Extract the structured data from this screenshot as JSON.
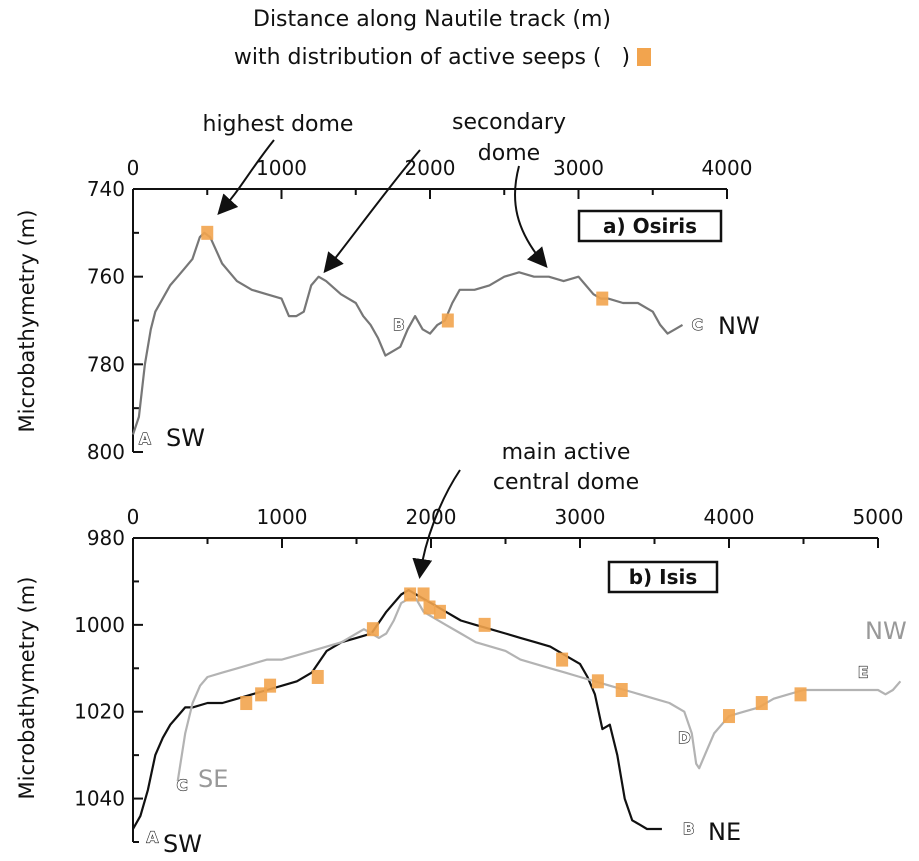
{
  "header": {
    "line1": "Distance along Nautile track (m)",
    "line2": "with distribution of active seeps (",
    "line2_end": ")"
  },
  "chart_data": [
    {
      "type": "line",
      "title": "a) Osiris",
      "ylabel": "Microbathymetry (m)",
      "xlim": [
        0,
        4000
      ],
      "ylim": [
        740,
        800
      ],
      "y_inverted": true,
      "x_ticks": [
        "0",
        "1000",
        "2000",
        "3000",
        "4000"
      ],
      "y_ticks": [
        "740",
        "760",
        "780",
        "800"
      ],
      "series": [
        {
          "color": "#777777",
          "x": [
            0,
            40,
            80,
            120,
            150,
            200,
            250,
            300,
            350,
            400,
            450,
            480,
            520,
            560,
            600,
            650,
            700,
            800,
            900,
            1000,
            1050,
            1100,
            1150,
            1200,
            1250,
            1300,
            1400,
            1450,
            1500,
            1550,
            1600,
            1650,
            1700,
            1750,
            1800,
            1850,
            1900,
            1950,
            2000,
            2050,
            2100,
            2150,
            2200,
            2300,
            2400,
            2500,
            2600,
            2700,
            2800,
            2900,
            3000,
            3050,
            3100,
            3150,
            3200,
            3300,
            3400,
            3500,
            3550,
            3600,
            3650,
            3700
          ],
          "y": [
            796,
            792,
            780,
            772,
            768,
            765,
            762,
            760,
            758,
            756,
            751,
            750,
            751,
            754,
            757,
            759,
            761,
            763,
            764,
            765,
            769,
            769,
            768,
            762,
            760,
            761,
            764,
            765,
            766,
            769,
            771,
            774,
            778,
            777,
            776,
            772,
            769,
            772,
            773,
            771,
            770,
            766,
            763,
            763,
            762,
            760,
            759,
            760,
            760,
            761,
            760,
            762,
            764,
            765,
            765,
            766,
            766,
            768,
            771,
            773,
            772,
            771
          ]
        }
      ],
      "seeps": [
        {
          "x": 500,
          "y": 750
        },
        {
          "x": 2120,
          "y": 770
        },
        {
          "x": 3160,
          "y": 765
        }
      ],
      "markers": [
        {
          "label": "A",
          "x": 80,
          "y": 797
        },
        {
          "label": "B",
          "x": 1790,
          "y": 771
        },
        {
          "label": "C",
          "x": 3800,
          "y": 771
        }
      ],
      "endpoint_labels": {
        "start": "SW",
        "end": "NW"
      },
      "annotations": [
        "highest dome",
        "secondary",
        "dome"
      ]
    },
    {
      "type": "line",
      "title": "b) Isis",
      "ylabel": "Microbathymetry (m)",
      "xlim": [
        0,
        5000
      ],
      "ylim": [
        980,
        1050
      ],
      "y_inverted": true,
      "x_ticks": [
        "0",
        "1000",
        "2000",
        "3000",
        "4000",
        "5000"
      ],
      "y_ticks": [
        "980",
        "1000",
        "1020",
        "1040"
      ],
      "series": [
        {
          "color": "#111111",
          "x": [
            0,
            50,
            100,
            150,
            200,
            250,
            300,
            350,
            400,
            500,
            600,
            700,
            800,
            900,
            1000,
            1100,
            1200,
            1300,
            1400,
            1500,
            1600,
            1700,
            1800,
            1850,
            1900,
            1950,
            2000,
            2100,
            2200,
            2300,
            2400,
            2500,
            2600,
            2700,
            2800,
            2900,
            3000,
            3050,
            3100,
            3150,
            3200,
            3250,
            3300,
            3350,
            3400,
            3450,
            3500,
            3550
          ],
          "y": [
            1047,
            1044,
            1038,
            1030,
            1026,
            1023,
            1021,
            1019,
            1019,
            1018,
            1018,
            1017,
            1016,
            1015,
            1014,
            1013,
            1011,
            1006,
            1004,
            1003,
            1002,
            997,
            993,
            992,
            993,
            994,
            995,
            997,
            999,
            1000,
            1001,
            1002,
            1003,
            1004,
            1005,
            1007,
            1009,
            1012,
            1016,
            1024,
            1023,
            1030,
            1040,
            1045,
            1046,
            1047,
            1047,
            1047
          ]
        },
        {
          "color": "#b3b3b3",
          "x": [
            300,
            350,
            400,
            450,
            500,
            600,
            700,
            800,
            900,
            1000,
            1100,
            1200,
            1300,
            1400,
            1500,
            1550,
            1600,
            1650,
            1700,
            1750,
            1800,
            1850,
            1900,
            1950,
            2000,
            2100,
            2200,
            2300,
            2400,
            2500,
            2600,
            2700,
            2800,
            2900,
            3000,
            3100,
            3200,
            3300,
            3400,
            3500,
            3600,
            3700,
            3750,
            3780,
            3800,
            3850,
            3900,
            3950,
            4000,
            4100,
            4200,
            4300,
            4400,
            4500,
            4600,
            4700,
            4800,
            4900,
            5000,
            5050,
            5100,
            5150
          ],
          "y": [
            1036,
            1025,
            1018,
            1014,
            1012,
            1011,
            1010,
            1009,
            1008,
            1008,
            1007,
            1006,
            1005,
            1004,
            1002,
            1001,
            1002,
            1003,
            1002,
            999,
            995,
            994,
            994,
            997,
            998,
            1000,
            1002,
            1004,
            1005,
            1006,
            1008,
            1009,
            1010,
            1011,
            1012,
            1013,
            1014,
            1015,
            1016,
            1017,
            1018,
            1020,
            1025,
            1032,
            1033,
            1029,
            1025,
            1023,
            1021,
            1020,
            1019,
            1017,
            1016,
            1015,
            1015,
            1015,
            1015,
            1015,
            1015,
            1016,
            1015,
            1013
          ]
        }
      ],
      "seeps": [
        {
          "x": 760,
          "y": 1018
        },
        {
          "x": 860,
          "y": 1016
        },
        {
          "x": 920,
          "y": 1014
        },
        {
          "x": 1240,
          "y": 1012
        },
        {
          "x": 1610,
          "y": 1001
        },
        {
          "x": 1860,
          "y": 993
        },
        {
          "x": 1950,
          "y": 993
        },
        {
          "x": 1990,
          "y": 996
        },
        {
          "x": 2060,
          "y": 997
        },
        {
          "x": 2360,
          "y": 1000
        },
        {
          "x": 2880,
          "y": 1008
        },
        {
          "x": 3120,
          "y": 1013
        },
        {
          "x": 3280,
          "y": 1015
        },
        {
          "x": 4000,
          "y": 1021
        },
        {
          "x": 4220,
          "y": 1018
        },
        {
          "x": 4480,
          "y": 1016
        }
      ],
      "markers": [
        {
          "label": "A",
          "x": 130,
          "y": 1049
        },
        {
          "label": "C",
          "x": 330,
          "y": 1037
        },
        {
          "label": "B",
          "x": 3730,
          "y": 1047
        },
        {
          "label": "D",
          "x": 3700,
          "y": 1026
        },
        {
          "label": "E",
          "x": 4900,
          "y": 1011
        }
      ],
      "endpoint_labels": {
        "A": "SW",
        "C": "SE",
        "B": "NE",
        "E": "NW"
      },
      "annotations": [
        "main active",
        "central dome"
      ]
    }
  ]
}
